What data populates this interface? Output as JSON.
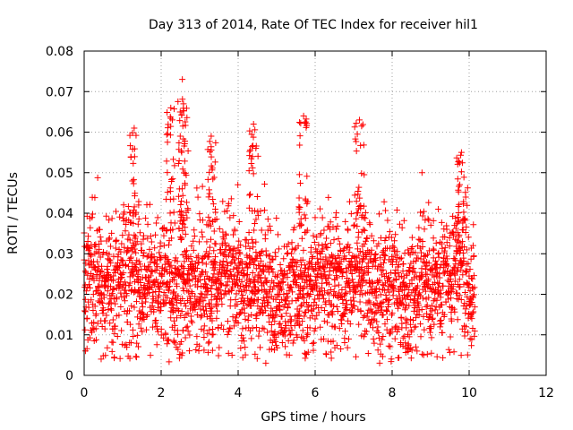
{
  "chart_data": {
    "type": "scatter",
    "title": "Day 313 of 2014, Rate Of TEC Index for receiver hil1",
    "xlabel": "GPS time / hours",
    "ylabel": "ROTI / TECUs",
    "xlim": [
      0,
      12
    ],
    "ylim": [
      0,
      0.08
    ],
    "xticks": [
      "0",
      "2",
      "4",
      "6",
      "8",
      "10",
      "12"
    ],
    "yticks": [
      "0",
      "0.01",
      "0.02",
      "0.03",
      "0.04",
      "0.05",
      "0.06",
      "0.07",
      "0.08"
    ],
    "grid": true,
    "marker": "+",
    "color": "#ff0000",
    "series": [
      {
        "name": "ROTI",
        "x_range": [
          0.0,
          10.15
        ],
        "baseline_typical_range": [
          0.01,
          0.035
        ],
        "notable_peaks": [
          {
            "x": 1.3,
            "y": 0.061
          },
          {
            "x": 2.25,
            "y": 0.066
          },
          {
            "x": 2.55,
            "y": 0.073
          },
          {
            "x": 2.58,
            "y": 0.067
          },
          {
            "x": 3.3,
            "y": 0.059
          },
          {
            "x": 4.4,
            "y": 0.062
          },
          {
            "x": 5.7,
            "y": 0.064
          },
          {
            "x": 7.15,
            "y": 0.063
          },
          {
            "x": 9.8,
            "y": 0.055
          }
        ]
      }
    ]
  }
}
